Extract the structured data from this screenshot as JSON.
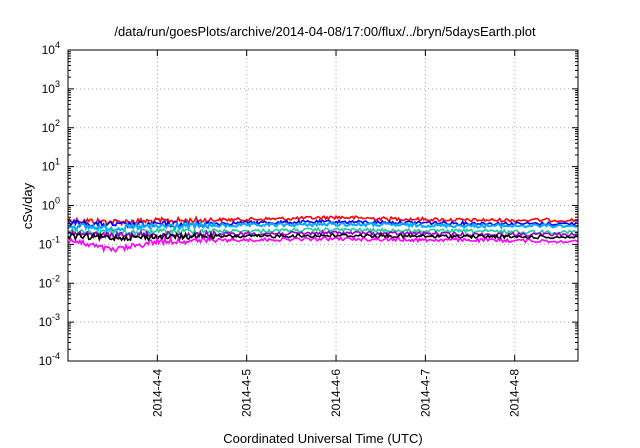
{
  "chart_data": {
    "type": "line",
    "title": "/data/run/goesPlots/archive/2014-04-08/17:00/flux/../bryn/5daysEarth.plot",
    "xlabel": "Coordinated Universal Time (UTC)",
    "ylabel": "cSv/day",
    "x_scale": "time",
    "y_scale": "log",
    "xlim": [
      "2014-04-03T00:00",
      "2014-04-08T17:00"
    ],
    "ylim": [
      0.0001,
      10000
    ],
    "grid": true,
    "legend": "none",
    "x_ticks": [
      {
        "x": "2014-04-04T00:00",
        "label": "2014-4-4"
      },
      {
        "x": "2014-04-05T00:00",
        "label": "2014-4-5"
      },
      {
        "x": "2014-04-06T00:00",
        "label": "2014-4-6"
      },
      {
        "x": "2014-04-07T00:00",
        "label": "2014-4-7"
      },
      {
        "x": "2014-04-08T00:00",
        "label": "2014-4-8"
      }
    ],
    "y_ticks": [
      {
        "value": 0.0001,
        "base": "10",
        "exp": "-4"
      },
      {
        "value": 0.001,
        "base": "10",
        "exp": "-3"
      },
      {
        "value": 0.01,
        "base": "10",
        "exp": "-2"
      },
      {
        "value": 0.1,
        "base": "10",
        "exp": "-1"
      },
      {
        "value": 1,
        "base": "10",
        "exp": "0"
      },
      {
        "value": 10,
        "base": "10",
        "exp": "1"
      },
      {
        "value": 100,
        "base": "10",
        "exp": "2"
      },
      {
        "value": 1000,
        "base": "10",
        "exp": "3"
      },
      {
        "value": 10000,
        "base": "10",
        "exp": "4"
      }
    ],
    "series": [
      {
        "color": "#ff0000",
        "x": [
          "2014-04-03T00:00",
          "2014-04-03T12:00",
          "2014-04-04T00:00",
          "2014-04-04T12:00",
          "2014-04-05T00:00",
          "2014-04-05T12:00",
          "2014-04-06T00:00",
          "2014-04-06T12:00",
          "2014-04-07T00:00",
          "2014-04-07T12:00",
          "2014-04-08T00:00",
          "2014-04-08T17:00"
        ],
        "values": [
          0.42,
          0.38,
          0.4,
          0.42,
          0.44,
          0.46,
          0.5,
          0.46,
          0.44,
          0.42,
          0.42,
          0.42
        ]
      },
      {
        "color": "#0000ff",
        "x": [
          "2014-04-03T00:00",
          "2014-04-03T12:00",
          "2014-04-04T00:00",
          "2014-04-04T12:00",
          "2014-04-05T00:00",
          "2014-04-05T12:00",
          "2014-04-06T00:00",
          "2014-04-06T12:00",
          "2014-04-07T00:00",
          "2014-04-07T12:00",
          "2014-04-08T00:00",
          "2014-04-08T17:00"
        ],
        "values": [
          0.36,
          0.32,
          0.33,
          0.34,
          0.36,
          0.37,
          0.38,
          0.37,
          0.36,
          0.35,
          0.34,
          0.34
        ]
      },
      {
        "color": "#00aaff",
        "x": [
          "2014-04-03T00:00",
          "2014-04-03T12:00",
          "2014-04-04T00:00",
          "2014-04-04T12:00",
          "2014-04-05T00:00",
          "2014-04-05T12:00",
          "2014-04-06T00:00",
          "2014-04-06T12:00",
          "2014-04-07T00:00",
          "2014-04-07T12:00",
          "2014-04-08T00:00",
          "2014-04-08T17:00"
        ],
        "values": [
          0.3,
          0.26,
          0.29,
          0.3,
          0.31,
          0.32,
          0.33,
          0.32,
          0.31,
          0.3,
          0.3,
          0.3
        ]
      },
      {
        "color": "#22cc99",
        "x": [
          "2014-04-03T00:00",
          "2014-04-03T12:00",
          "2014-04-04T00:00",
          "2014-04-04T12:00",
          "2014-04-05T00:00",
          "2014-04-05T12:00",
          "2014-04-06T00:00",
          "2014-04-06T12:00",
          "2014-04-07T00:00",
          "2014-04-07T12:00",
          "2014-04-08T00:00",
          "2014-04-08T17:00"
        ],
        "values": [
          0.22,
          0.2,
          0.21,
          0.22,
          0.22,
          0.23,
          0.24,
          0.23,
          0.22,
          0.22,
          0.21,
          0.21
        ]
      },
      {
        "color": "#9900cc",
        "x": [
          "2014-04-03T00:00",
          "2014-04-03T12:00",
          "2014-04-04T00:00",
          "2014-04-04T12:00",
          "2014-04-05T00:00",
          "2014-04-05T12:00",
          "2014-04-06T00:00",
          "2014-04-06T12:00",
          "2014-04-07T00:00",
          "2014-04-07T12:00",
          "2014-04-08T00:00",
          "2014-04-08T17:00"
        ],
        "values": [
          0.19,
          0.17,
          0.18,
          0.18,
          0.19,
          0.19,
          0.2,
          0.19,
          0.19,
          0.18,
          0.18,
          0.18
        ]
      },
      {
        "color": "#000000",
        "x": [
          "2014-04-03T00:00",
          "2014-04-03T12:00",
          "2014-04-04T00:00",
          "2014-04-04T12:00",
          "2014-04-05T00:00",
          "2014-04-05T12:00",
          "2014-04-06T00:00",
          "2014-04-06T12:00",
          "2014-04-07T00:00",
          "2014-04-07T12:00",
          "2014-04-08T00:00",
          "2014-04-08T17:00"
        ],
        "values": [
          0.16,
          0.15,
          0.155,
          0.16,
          0.16,
          0.165,
          0.17,
          0.165,
          0.16,
          0.16,
          0.155,
          0.155
        ]
      },
      {
        "color": "#ff00ff",
        "x": [
          "2014-04-03T00:00",
          "2014-04-03T12:00",
          "2014-04-04T00:00",
          "2014-04-04T12:00",
          "2014-04-05T00:00",
          "2014-04-05T12:00",
          "2014-04-06T00:00",
          "2014-04-06T12:00",
          "2014-04-07T00:00",
          "2014-04-07T12:00",
          "2014-04-08T00:00",
          "2014-04-08T17:00"
        ],
        "values": [
          0.13,
          0.07,
          0.12,
          0.125,
          0.13,
          0.135,
          0.14,
          0.135,
          0.13,
          0.13,
          0.125,
          0.12
        ]
      }
    ]
  }
}
